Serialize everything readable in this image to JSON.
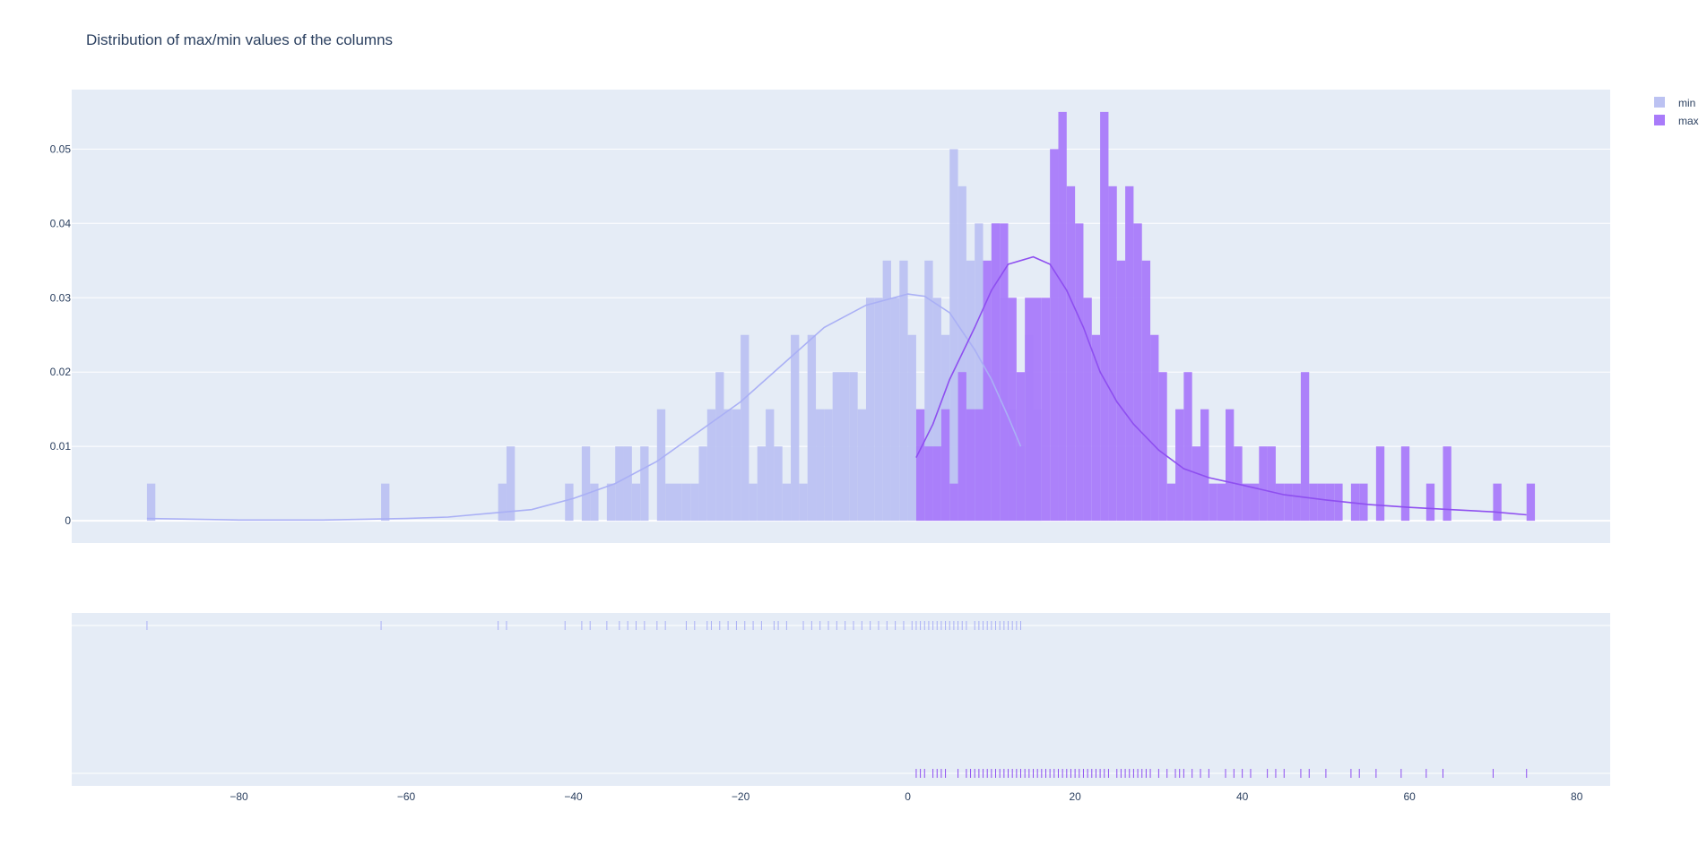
{
  "chart_data": {
    "type": "histogram",
    "title": "Distribution of max/min values of the columns",
    "xlabel": "",
    "ylabel": "",
    "xlim": [
      -100,
      84
    ],
    "ylim": [
      -0.003,
      0.058
    ],
    "x_ticks": [
      -80,
      -60,
      -40,
      -20,
      0,
      20,
      40,
      60,
      80
    ],
    "x_tick_labels": [
      "−80",
      "−60",
      "−40",
      "−20",
      "0",
      "20",
      "40",
      "60",
      "80"
    ],
    "y_ticks": [
      0,
      0.01,
      0.02,
      0.03,
      0.04,
      0.05
    ],
    "y_tick_labels": [
      "0",
      "0.01",
      "0.02",
      "0.03",
      "0.04",
      "0.05"
    ],
    "grid": true,
    "legend_position": "top-right",
    "bin_width": 1,
    "series": [
      {
        "name": "min",
        "color": "#bcc2f2",
        "line_color": "#aab0f5",
        "histogram": [
          [
            -91,
            0.005
          ],
          [
            -63,
            0.005
          ],
          [
            -49,
            0.005
          ],
          [
            -48,
            0.01
          ],
          [
            -41,
            0.005
          ],
          [
            -39,
            0.01
          ],
          [
            -38,
            0.005
          ],
          [
            -36,
            0.005
          ],
          [
            -35,
            0.01
          ],
          [
            -34,
            0.01
          ],
          [
            -33,
            0.005
          ],
          [
            -32,
            0.01
          ],
          [
            -30,
            0.015
          ],
          [
            -29,
            0.005
          ],
          [
            -28,
            0.005
          ],
          [
            -27,
            0.005
          ],
          [
            -26,
            0.005
          ],
          [
            -25,
            0.01
          ],
          [
            -24,
            0.015
          ],
          [
            -23,
            0.02
          ],
          [
            -22,
            0.015
          ],
          [
            -21,
            0.015
          ],
          [
            -20,
            0.025
          ],
          [
            -19,
            0.005
          ],
          [
            -18,
            0.01
          ],
          [
            -17,
            0.015
          ],
          [
            -16,
            0.01
          ],
          [
            -15,
            0.005
          ],
          [
            -14,
            0.025
          ],
          [
            -13,
            0.005
          ],
          [
            -12,
            0.025
          ],
          [
            -11,
            0.015
          ],
          [
            -10,
            0.015
          ],
          [
            -9,
            0.02
          ],
          [
            -8,
            0.02
          ],
          [
            -7,
            0.02
          ],
          [
            -6,
            0.015
          ],
          [
            -5,
            0.03
          ],
          [
            -4,
            0.03
          ],
          [
            -3,
            0.035
          ],
          [
            -2,
            0.03
          ],
          [
            -1,
            0.035
          ],
          [
            0,
            0.025
          ],
          [
            1,
            0.01
          ],
          [
            2,
            0.035
          ],
          [
            3,
            0.03
          ],
          [
            4,
            0.025
          ],
          [
            5,
            0.05
          ],
          [
            6,
            0.045
          ],
          [
            7,
            0.035
          ],
          [
            8,
            0.04
          ],
          [
            9,
            0.02
          ],
          [
            10,
            0.04
          ],
          [
            11,
            0.03
          ],
          [
            12,
            0.015
          ],
          [
            13,
            0.01
          ],
          [
            14,
            0.025
          ],
          [
            15,
            0.015
          ]
        ],
        "kde": [
          [
            -91,
            0.0003
          ],
          [
            -80,
            0.0001
          ],
          [
            -70,
            0.0001
          ],
          [
            -60,
            0.0003
          ],
          [
            -55,
            0.0005
          ],
          [
            -50,
            0.001
          ],
          [
            -45,
            0.0015
          ],
          [
            -40,
            0.003
          ],
          [
            -35,
            0.005
          ],
          [
            -30,
            0.008
          ],
          [
            -25,
            0.012
          ],
          [
            -20,
            0.016
          ],
          [
            -15,
            0.021
          ],
          [
            -10,
            0.026
          ],
          [
            -5,
            0.029
          ],
          [
            0,
            0.0305
          ],
          [
            2,
            0.0302
          ],
          [
            5,
            0.028
          ],
          [
            8,
            0.023
          ],
          [
            10,
            0.019
          ],
          [
            12,
            0.014
          ],
          [
            13.5,
            0.01
          ]
        ],
        "rug": [
          -91,
          -63,
          -49,
          -48,
          -41,
          -39,
          -38,
          -36,
          -34.5,
          -33.5,
          -32.5,
          -31.5,
          -30,
          -29,
          -26.5,
          -25.5,
          -24,
          -23.5,
          -22.5,
          -21.5,
          -20.5,
          -19.5,
          -18.5,
          -17.5,
          -16,
          -15.5,
          -14.5,
          -12.5,
          -11.5,
          -10.5,
          -9.5,
          -8.5,
          -7.5,
          -6.5,
          -5.5,
          -4.5,
          -3.5,
          -2.5,
          -1.5,
          -0.5,
          0.5,
          1,
          1.5,
          2,
          2.5,
          3,
          3.5,
          4,
          4.5,
          5,
          5.5,
          6,
          6.5,
          7,
          8,
          8.5,
          9,
          9.5,
          10,
          10.5,
          11,
          11.5,
          12,
          12.5,
          13,
          13.5
        ]
      },
      {
        "name": "max",
        "color": "#a97bfa",
        "line_color": "#8e4ff0",
        "histogram": [
          [
            1,
            0.015
          ],
          [
            2,
            0.01
          ],
          [
            3,
            0.01
          ],
          [
            4,
            0.015
          ],
          [
            5,
            0.005
          ],
          [
            6,
            0.02
          ],
          [
            7,
            0.015
          ],
          [
            8,
            0.015
          ],
          [
            9,
            0.035
          ],
          [
            10,
            0.04
          ],
          [
            11,
            0.04
          ],
          [
            12,
            0.03
          ],
          [
            13,
            0.02
          ],
          [
            14,
            0.03
          ],
          [
            15,
            0.03
          ],
          [
            16,
            0.03
          ],
          [
            17,
            0.05
          ],
          [
            18,
            0.055
          ],
          [
            19,
            0.045
          ],
          [
            20,
            0.04
          ],
          [
            21,
            0.03
          ],
          [
            22,
            0.025
          ],
          [
            23,
            0.055
          ],
          [
            24,
            0.045
          ],
          [
            25,
            0.035
          ],
          [
            26,
            0.045
          ],
          [
            27,
            0.04
          ],
          [
            28,
            0.035
          ],
          [
            29,
            0.025
          ],
          [
            30,
            0.02
          ],
          [
            31,
            0.005
          ],
          [
            32,
            0.015
          ],
          [
            33,
            0.02
          ],
          [
            34,
            0.01
          ],
          [
            35,
            0.015
          ],
          [
            36,
            0.005
          ],
          [
            37,
            0.005
          ],
          [
            38,
            0.015
          ],
          [
            39,
            0.01
          ],
          [
            40,
            0.005
          ],
          [
            41,
            0.005
          ],
          [
            42,
            0.01
          ],
          [
            43,
            0.01
          ],
          [
            44,
            0.005
          ],
          [
            45,
            0.005
          ],
          [
            46,
            0.005
          ],
          [
            47,
            0.02
          ],
          [
            48,
            0.005
          ],
          [
            49,
            0.005
          ],
          [
            50,
            0.005
          ],
          [
            51,
            0.005
          ],
          [
            53,
            0.005
          ],
          [
            54,
            0.005
          ],
          [
            56,
            0.01
          ],
          [
            59,
            0.01
          ],
          [
            62,
            0.005
          ],
          [
            64,
            0.01
          ],
          [
            70,
            0.005
          ],
          [
            74,
            0.005
          ]
        ],
        "kde": [
          [
            1,
            0.0085
          ],
          [
            3,
            0.013
          ],
          [
            5,
            0.019
          ],
          [
            8,
            0.026
          ],
          [
            10,
            0.031
          ],
          [
            12,
            0.0345
          ],
          [
            15,
            0.0355
          ],
          [
            17,
            0.0345
          ],
          [
            19,
            0.031
          ],
          [
            21,
            0.026
          ],
          [
            23,
            0.02
          ],
          [
            25,
            0.016
          ],
          [
            27,
            0.013
          ],
          [
            30,
            0.0095
          ],
          [
            33,
            0.007
          ],
          [
            36,
            0.0058
          ],
          [
            40,
            0.0048
          ],
          [
            45,
            0.0035
          ],
          [
            50,
            0.0028
          ],
          [
            55,
            0.0022
          ],
          [
            60,
            0.0018
          ],
          [
            65,
            0.0015
          ],
          [
            70,
            0.0012
          ],
          [
            74,
            0.0008
          ]
        ],
        "rug": [
          1,
          1.5,
          2,
          3,
          3.5,
          4,
          4.5,
          6,
          7,
          7.5,
          8,
          8.5,
          9,
          9.5,
          10,
          10.5,
          11,
          11.5,
          12,
          12.5,
          13,
          13.5,
          14,
          14.5,
          15,
          15.5,
          16,
          16.5,
          17,
          17.5,
          18,
          18.5,
          19,
          19.5,
          20,
          20.5,
          21,
          21.5,
          22,
          22.5,
          23,
          23.5,
          24,
          25,
          25.5,
          26,
          26.5,
          27,
          27.5,
          28,
          28.5,
          29,
          30,
          31,
          32,
          32.5,
          33,
          34,
          35,
          36,
          38,
          39,
          40,
          41,
          43,
          44,
          45,
          47,
          48,
          50,
          53,
          54,
          56,
          59,
          62,
          64,
          70,
          74
        ]
      }
    ]
  }
}
